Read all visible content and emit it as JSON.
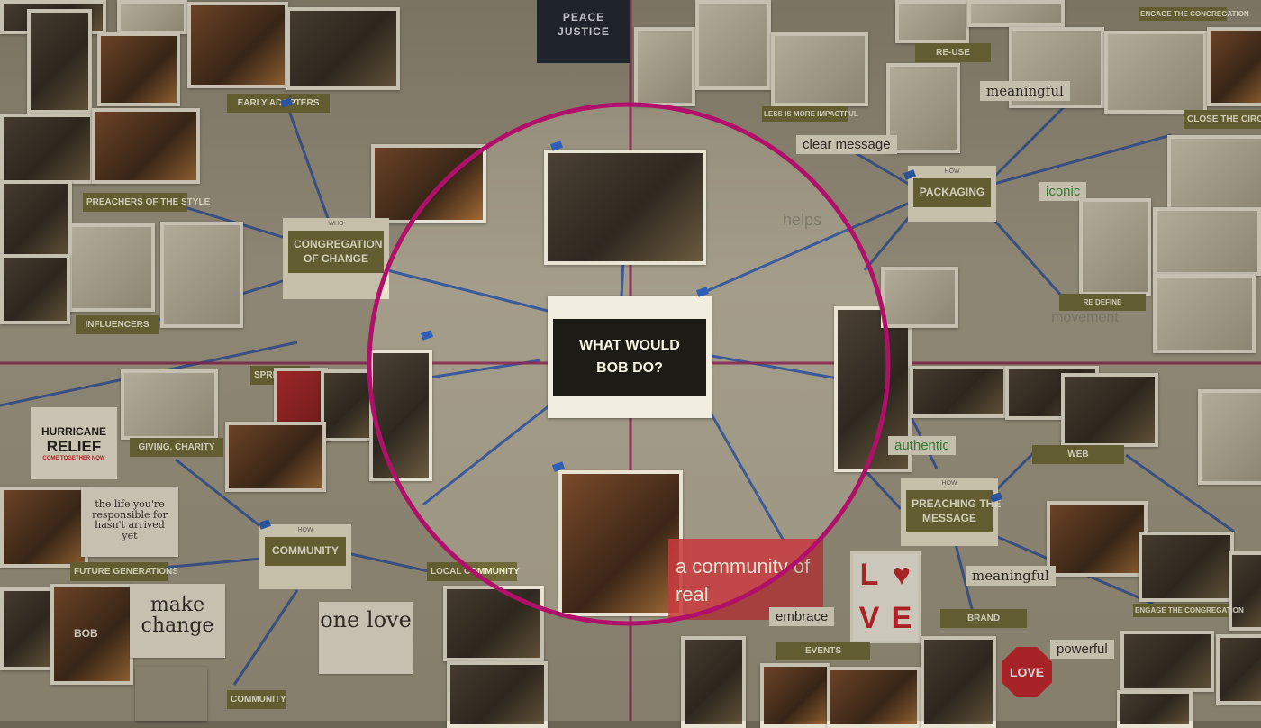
{
  "center": {
    "line1": "WHAT WOULD",
    "line2": "BOB DO?"
  },
  "hubs": {
    "congregation": {
      "small": "WHO",
      "line1": "CONGREGATION",
      "line2": "OF CHANGE"
    },
    "community": {
      "small": "HOW",
      "line1": "COMMUNITY"
    },
    "packaging": {
      "small": "HOW",
      "line1": "PACKAGING"
    },
    "preaching": {
      "small": "HOW",
      "line1": "PREACHING THE",
      "line2": "MESSAGE"
    }
  },
  "labels": {
    "early_adopters": "EARLY ADOPTERS",
    "preachers_of_style": "PREACHERS OF THE STYLE",
    "influencers": "INFLUENCERS",
    "spreaders": "SPREADERS",
    "giving_charity": "GIVING, CHARITY",
    "future_generations": "FUTURE GENERATIONS",
    "local_community": "LOCAL COMMUNITY",
    "community_bottom": "COMMUNITY",
    "re_use": "RE-USE",
    "less_is_more": "LESS IS MORE IMPACTFUL",
    "engage_top": "ENGAGE THE CONGREGATION",
    "close_circle": "CLOSE THE CIRCLE",
    "re_define": "RE DEFINE",
    "web": "WEB",
    "brand": "BRAND",
    "events": "EVENTS",
    "engage_bottom": "ENGAGE THE CONGREGATION"
  },
  "words": {
    "meaningful_top": "meaningful",
    "clear_message": "clear message",
    "iconic": "iconic",
    "helps": "helps",
    "movement": "movement",
    "authentic": "authentic",
    "meaningful_bottom": "meaningful",
    "embrace": "embrace",
    "powerful": "powerful",
    "a_community": "a community of real"
  },
  "notes": {
    "make_change": "make change",
    "one_love": "one love",
    "handwritten": "the life you're responsible for hasn't arrived yet"
  },
  "signs": {
    "hurricane_line1": "HURRICANE",
    "hurricane_line2": "RELIEF",
    "hurricane_line3": "COME TOGETHER NOW",
    "peace_line1": "PEACE",
    "peace_line2": "JUSTICE",
    "love_l": "L",
    "love_heart": "♥",
    "love_v": "V",
    "love_e": "E",
    "stop_love": "LOVE",
    "bob_shirt": "BOB"
  },
  "colors": {
    "magenta_ring": "#b0106a",
    "grid_line": "#9a2a5a",
    "tape_blue": "#2d5fb8",
    "label_olive": "#6f6a37"
  }
}
